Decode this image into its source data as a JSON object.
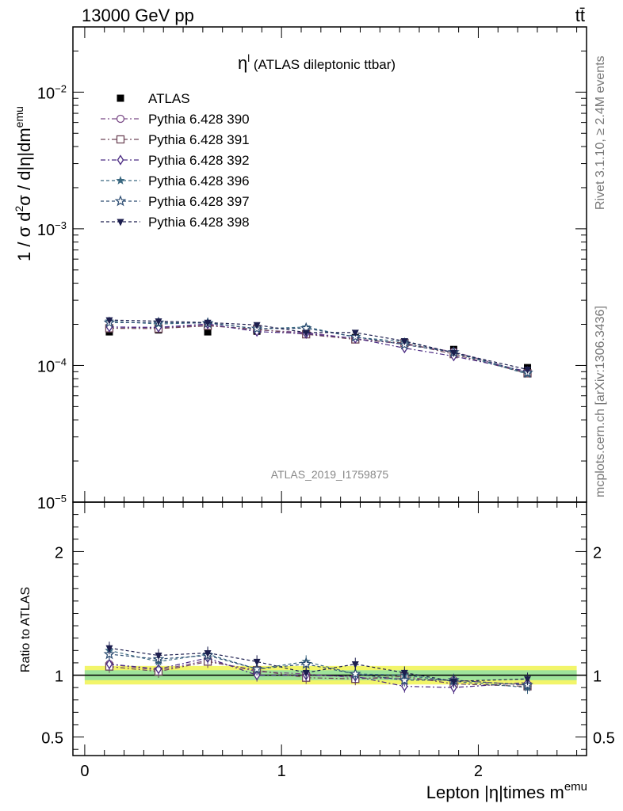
{
  "header": {
    "energy_label": "13000 GeV pp",
    "process_label": "tt̄",
    "side_rivet": "Rivet 3.1.10, ≥ 2.4M events",
    "side_mcplots": "mcplots.cern.ch [arXiv:1306.3436]",
    "analysis_id": "ATLAS_2019_I1759875"
  },
  "chart_data": [
    {
      "type": "scatter",
      "panel": "main",
      "title_symbol": "η",
      "title_sup": "l",
      "title_rest": " (ATLAS dileptonic ttbar)",
      "ylabel_prefix": "1 / σ  d",
      "ylabel_sup1": "2",
      "ylabel_mid": "σ / d|η|dm",
      "ylabel_sup2": "emu",
      "yscale": "log",
      "xlim": [
        -0.06,
        2.55
      ],
      "ylim": [
        1e-05,
        0.03
      ],
      "y_tick_labels": [
        {
          "value": 1e-05,
          "base": "10",
          "exp": "−5"
        },
        {
          "value": 0.0001,
          "base": "10",
          "exp": "−4"
        },
        {
          "value": 0.001,
          "base": "10",
          "exp": "−3"
        },
        {
          "value": 0.01,
          "base": "10",
          "exp": "−2"
        }
      ],
      "x": [
        0.125,
        0.375,
        0.625,
        0.875,
        1.125,
        1.375,
        1.625,
        1.875,
        2.25
      ],
      "series": [
        {
          "name": "ATLAS",
          "marker": "square-filled",
          "color": "#000000",
          "dash": "",
          "values": [
            0.000176,
            0.000182,
            0.000176,
            0.000178,
            0.000172,
            0.00016,
            0.000148,
            0.000131,
            9.65e-05
          ]
        },
        {
          "name": "Pythia 6.428 390",
          "marker": "circle",
          "color": "#7a4a86",
          "dash": "6,3,2,3",
          "values": [
            0.000191,
            0.000188,
            0.000197,
            0.000182,
            0.000174,
            0.000157,
            0.000143,
            0.000126,
            8.85e-05
          ]
        },
        {
          "name": "Pythia 6.428 391",
          "marker": "square",
          "color": "#6e4658",
          "dash": "6,3,2,3",
          "values": [
            0.000187,
            0.000186,
            0.000195,
            0.000184,
            0.000169,
            0.000155,
            0.000146,
            0.000121,
            8.75e-05
          ]
        },
        {
          "name": "Pythia 6.428 392",
          "marker": "diamond",
          "color": "#4a2a82",
          "dash": "6,3,2,3",
          "values": [
            0.000191,
            0.00019,
            0.000201,
            0.000177,
            0.000171,
            0.000158,
            0.000134,
            0.000117,
            9.05e-05
          ]
        },
        {
          "name": "Pythia 6.428 396",
          "marker": "star-filled",
          "color": "#3a6880",
          "dash": "4,3",
          "values": [
            0.000211,
            0.000201,
            0.000206,
            0.000185,
            0.000191,
            0.000161,
            0.000149,
            0.000124,
            8.65e-05
          ]
        },
        {
          "name": "Pythia 6.428 397",
          "marker": "star",
          "color": "#2c4c72",
          "dash": "4,3",
          "values": [
            0.000206,
            0.000206,
            0.000204,
            0.000186,
            0.000187,
            0.000162,
            0.000142,
            0.000125,
            8.85e-05
          ]
        },
        {
          "name": "Pythia 6.428 398",
          "marker": "triangle-down-filled",
          "color": "#1c1e4e",
          "dash": "4,3",
          "values": [
            0.000215,
            0.000211,
            0.000206,
            0.000198,
            0.000174,
            0.000174,
            0.000151,
            0.000124,
            9.35e-05
          ]
        }
      ]
    },
    {
      "type": "scatter",
      "panel": "ratio",
      "ylabel": "Ratio to ATLAS",
      "xlabel_prefix": "Lepton |η|times m",
      "xlabel_sup": "emu",
      "xlim": [
        -0.06,
        2.55
      ],
      "ylim": [
        0.35,
        2.4
      ],
      "x_tick_labels": [
        {
          "value": 0,
          "label": "0"
        },
        {
          "value": 1,
          "label": "1"
        },
        {
          "value": 2,
          "label": "2"
        }
      ],
      "y_tick_labels": [
        {
          "value": 0.5,
          "label": "0.5"
        },
        {
          "value": 1,
          "label": "1"
        },
        {
          "value": 2,
          "label": "2"
        }
      ],
      "band_outer": 0.075,
      "band_inner": 0.04,
      "band_outer_color": "#f2f56a",
      "band_inner_color": "#9ee39b",
      "x": [
        0.125,
        0.375,
        0.625,
        0.875,
        1.125,
        1.375,
        1.625,
        1.875,
        2.25
      ],
      "series": [
        {
          "name": "Pythia 6.428 390",
          "values": [
            1.09,
            1.04,
            1.12,
            1.03,
            1.01,
            0.98,
            0.97,
            0.96,
            0.92
          ]
        },
        {
          "name": "Pythia 6.428 391",
          "values": [
            1.07,
            1.03,
            1.11,
            1.04,
            0.98,
            0.97,
            0.99,
            0.93,
            0.91
          ]
        },
        {
          "name": "Pythia 6.428 392",
          "values": [
            1.09,
            1.05,
            1.14,
            1.0,
            1.0,
            0.99,
            0.91,
            0.9,
            0.94
          ]
        },
        {
          "name": "Pythia 6.428 396",
          "values": [
            1.2,
            1.11,
            1.17,
            1.05,
            1.11,
            1.01,
            1.0,
            0.95,
            0.9
          ]
        },
        {
          "name": "Pythia 6.428 397",
          "values": [
            1.17,
            1.13,
            1.16,
            1.05,
            1.09,
            1.01,
            0.96,
            0.96,
            0.92
          ]
        },
        {
          "name": "Pythia 6.428 398",
          "values": [
            1.22,
            1.16,
            1.18,
            1.11,
            1.02,
            1.09,
            1.02,
            0.95,
            0.97
          ]
        }
      ]
    }
  ]
}
